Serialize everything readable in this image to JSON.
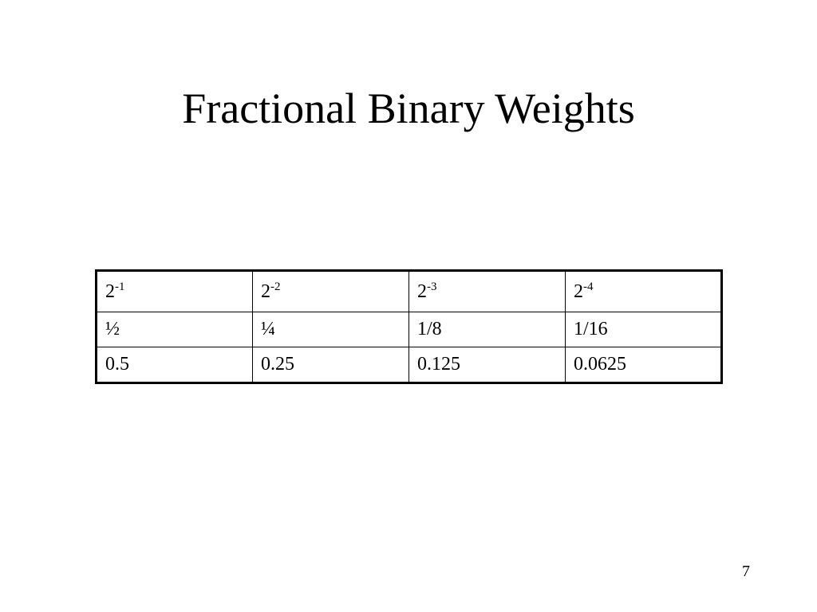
{
  "header": {
    "title": "Fractional Binary Weights"
  },
  "table": {
    "rows": [
      [
        {
          "base": "2",
          "exp": "-1"
        },
        {
          "base": "2",
          "exp": "-2"
        },
        {
          "base": "2",
          "exp": "-3"
        },
        {
          "base": "2",
          "exp": "-4"
        }
      ],
      [
        "½",
        "¼",
        "1/8",
        "1/16"
      ],
      [
        "0.5",
        "0.25",
        "0.125",
        "0.0625"
      ]
    ]
  },
  "footer": {
    "page_number": "7"
  }
}
